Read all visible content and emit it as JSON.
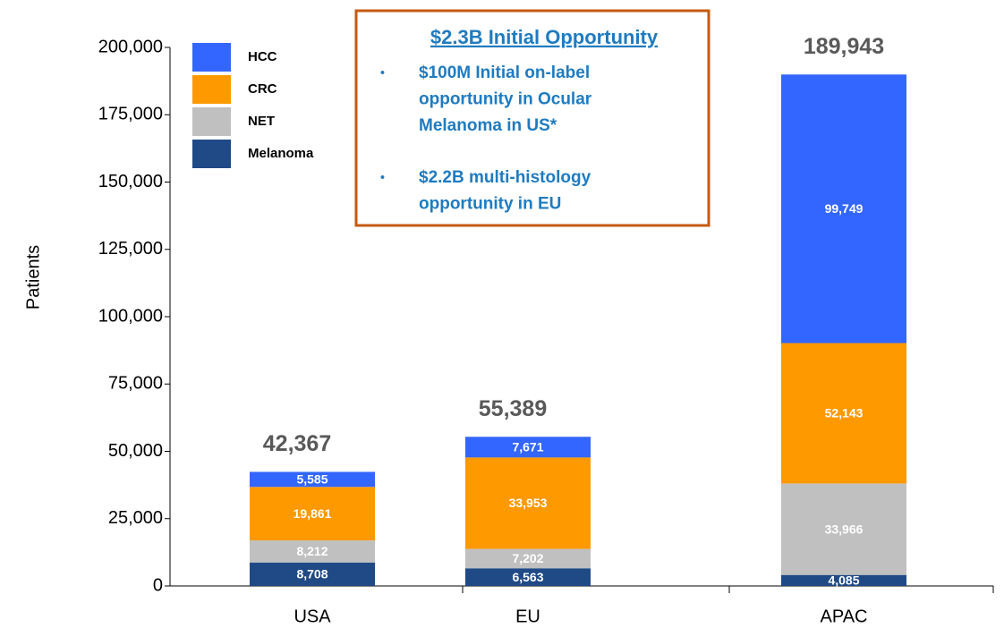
{
  "chart_data": {
    "type": "stacked_bar",
    "ylabel": "Patients",
    "categories": [
      "USA",
      "EU",
      "APAC"
    ],
    "series": [
      {
        "name": "Melanoma",
        "color": "#1f4a86",
        "values": [
          8708,
          6563,
          4085
        ],
        "value_labels": [
          "8,708",
          "6,563",
          "4,085"
        ]
      },
      {
        "name": "NET",
        "color": "#c0c0c0",
        "values": [
          8212,
          7202,
          33966
        ],
        "value_labels": [
          "8,212",
          "7,202",
          "33,966"
        ]
      },
      {
        "name": "CRC",
        "color": "#ff9900",
        "values": [
          19861,
          33953,
          52143
        ],
        "value_labels": [
          "19,861",
          "33,953",
          "52,143"
        ]
      },
      {
        "name": "HCC",
        "color": "#3366ff",
        "values": [
          5585,
          7671,
          99749
        ],
        "value_labels": [
          "5,585",
          "7,671",
          "99,749"
        ]
      }
    ],
    "totals": [
      42367,
      55389,
      189943
    ],
    "total_labels": [
      "42,367",
      "55,389",
      "189,943"
    ],
    "ylim": [
      0,
      200000
    ],
    "yticks": [
      0,
      {
        "value": 25000,
        "label": "25,000"
      },
      {
        "value": 50000,
        "label": "50,000"
      },
      {
        "value": 75000,
        "label": "75,000"
      },
      {
        "value": 100000,
        "label": "100,000"
      },
      {
        "value": 125000,
        "label": "125,000"
      },
      {
        "value": 150000,
        "label": "150,000"
      },
      {
        "value": 175000,
        "label": "175,000"
      },
      {
        "value": 200000,
        "label": "200,000"
      }
    ],
    "annotation": {
      "title": "$2.3B Initial Opportunity",
      "bullets": [
        [
          "$100M Initial on-label",
          "opportunity in Ocular",
          "Melanoma in US*"
        ],
        [
          "$2.2B multi-histology",
          "opportunity in EU"
        ]
      ]
    }
  }
}
